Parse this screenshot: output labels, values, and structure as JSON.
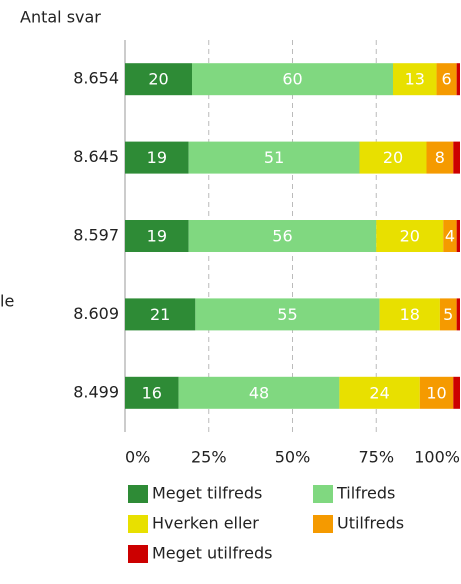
{
  "chart_data": {
    "type": "stacked_barh",
    "axis_title": "Antal svar",
    "annotation": "le",
    "categories": [
      "8.654",
      "8.645",
      "8.597",
      "8.609",
      "8.499"
    ],
    "series": [
      {
        "name": "Meget tilfreds",
        "color": "#2e8b36",
        "values": [
          20,
          19,
          19,
          21,
          16
        ]
      },
      {
        "name": "Tilfreds",
        "color": "#80d880",
        "values": [
          60,
          51,
          56,
          55,
          48
        ]
      },
      {
        "name": "Hverken eller",
        "color": "#e8e000",
        "values": [
          13,
          20,
          20,
          18,
          24
        ]
      },
      {
        "name": "Utilfreds",
        "color": "#f59a00",
        "values": [
          6,
          8,
          4,
          5,
          10
        ]
      },
      {
        "name": "Meget utilfreds",
        "color": "#cc0000",
        "values": [
          1,
          2,
          1,
          1,
          2
        ]
      }
    ],
    "xlim": [
      0,
      100
    ],
    "xticks": [
      {
        "value": 0,
        "label": "0%"
      },
      {
        "value": 25,
        "label": "25%"
      },
      {
        "value": 50,
        "label": "50%"
      },
      {
        "value": 75,
        "label": "75%"
      },
      {
        "value": 100,
        "label": "100%"
      }
    ],
    "grid": true
  }
}
